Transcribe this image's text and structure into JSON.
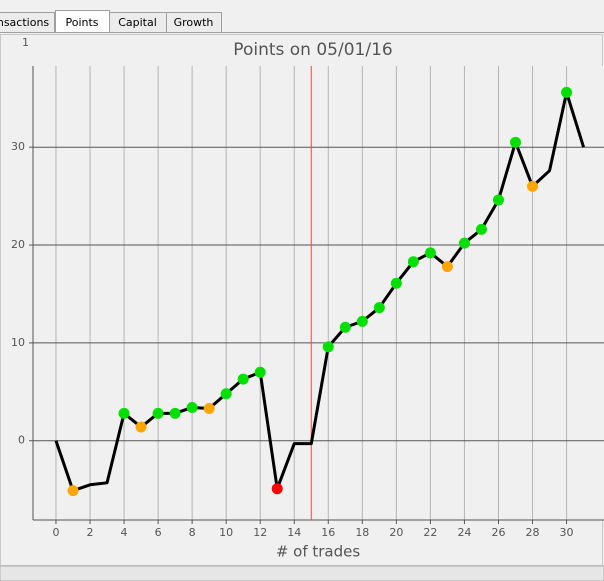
{
  "tabs": [
    "nsactions",
    "Points",
    "Capital",
    "Growth"
  ],
  "panel_label": "1",
  "chart_data": {
    "type": "line",
    "title": "Points on 05/01/16",
    "xlabel": "# of trades",
    "x": [
      0,
      1,
      2,
      3,
      4,
      5,
      6,
      7,
      8,
      9,
      10,
      11,
      12,
      13,
      14,
      15,
      16,
      17,
      18,
      19,
      20,
      21,
      22,
      23,
      24,
      25,
      26,
      27,
      28,
      29,
      30,
      31
    ],
    "series": [
      {
        "name": "Points",
        "color": "#000000",
        "values": [
          0,
          -5.1,
          -4.5,
          -4.3,
          2.8,
          1.4,
          2.8,
          2.8,
          3.4,
          3.3,
          4.8,
          6.3,
          7.0,
          -4.9,
          -0.3,
          -0.3,
          9.6,
          11.6,
          12.2,
          13.6,
          16.1,
          18.3,
          19.2,
          17.8,
          20.2,
          21.6,
          24.6,
          30.5,
          26.0,
          27.6,
          35.6,
          30.0
        ],
        "marker_colors": [
          null,
          "#ffa500",
          null,
          null,
          "#00e000",
          "#ffa500",
          "#00e000",
          "#00e000",
          "#00e000",
          "#ffa500",
          "#00e000",
          "#00e000",
          "#00e000",
          "#ff0000",
          null,
          null,
          "#00e000",
          "#00e000",
          "#00e000",
          "#00e000",
          "#00e000",
          "#00e000",
          "#00e000",
          "#ffa500",
          "#00e000",
          "#00e000",
          "#00e000",
          "#00e000",
          "#ffa500",
          null,
          "#00e000",
          null
        ]
      }
    ],
    "xlim": [
      -1.35,
      32.2
    ],
    "ylim": [
      -8.1,
      38.3
    ],
    "xticks": [
      0,
      2,
      4,
      6,
      8,
      10,
      12,
      14,
      16,
      18,
      20,
      22,
      24,
      26,
      28,
      30
    ],
    "yticks": [
      0,
      10,
      20,
      30
    ],
    "grid": true,
    "vline": {
      "x": 15,
      "color": "#ff4040"
    }
  }
}
